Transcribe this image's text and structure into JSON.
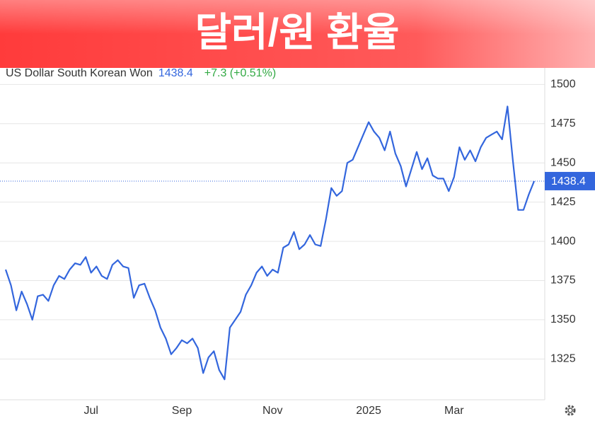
{
  "chart_data": {
    "type": "line",
    "title": "달러/원 환율",
    "subtitle": "US Dollar South Korean Won",
    "change_label": "+7.3 (+0.51%)",
    "categories": [
      null,
      null,
      null,
      null,
      null,
      null,
      null,
      null,
      null,
      null,
      null,
      null,
      null,
      null,
      null,
      null,
      "Jul",
      null,
      null,
      null,
      null,
      null,
      null,
      null,
      null,
      null,
      null,
      null,
      null,
      null,
      null,
      null,
      null,
      "Sep",
      null,
      null,
      null,
      null,
      null,
      null,
      null,
      null,
      null,
      null,
      null,
      null,
      null,
      null,
      null,
      null,
      "Nov",
      null,
      null,
      null,
      null,
      null,
      null,
      null,
      null,
      null,
      null,
      null,
      null,
      null,
      null,
      null,
      null,
      null,
      "2025",
      null,
      null,
      null,
      null,
      null,
      null,
      null,
      null,
      null,
      null,
      null,
      null,
      null,
      null,
      null,
      "Mar",
      null,
      null,
      null,
      null,
      null,
      null,
      null,
      null,
      null,
      null,
      null,
      null,
      null,
      null,
      null
    ],
    "values": [
      1382,
      1372,
      1356,
      1368,
      1360,
      1350,
      1365,
      1366,
      1362,
      1372,
      1378,
      1376,
      1382,
      1386,
      1385,
      1390,
      1380,
      1384,
      1378,
      1376,
      1385,
      1388,
      1384,
      1383,
      1364,
      1372,
      1373,
      1364,
      1356,
      1345,
      1338,
      1328,
      1332,
      1337,
      1335,
      1338,
      1332,
      1316,
      1326,
      1330,
      1318,
      1312,
      1345,
      1350,
      1355,
      1366,
      1372,
      1380,
      1384,
      1378,
      1382,
      1380,
      1396,
      1398,
      1406,
      1395,
      1398,
      1404,
      1398,
      1397,
      1414,
      1434,
      1429,
      1432,
      1450,
      1452,
      1460,
      1468,
      1476,
      1470,
      1466,
      1458,
      1470,
      1456,
      1448,
      1435,
      1446,
      1457,
      1446,
      1453,
      1442,
      1440,
      1440,
      1432,
      1441,
      1460,
      1452,
      1458,
      1451,
      1460,
      1466,
      1468,
      1470,
      1465,
      1486,
      1452,
      1420,
      1420,
      1430,
      1438.4
    ],
    "color": "#3366dd",
    "ylim": [
      1299,
      1511
    ],
    "yticks": [
      1325,
      1350,
      1375,
      1400,
      1425,
      1450,
      1475,
      1500
    ],
    "grid": true
  }
}
